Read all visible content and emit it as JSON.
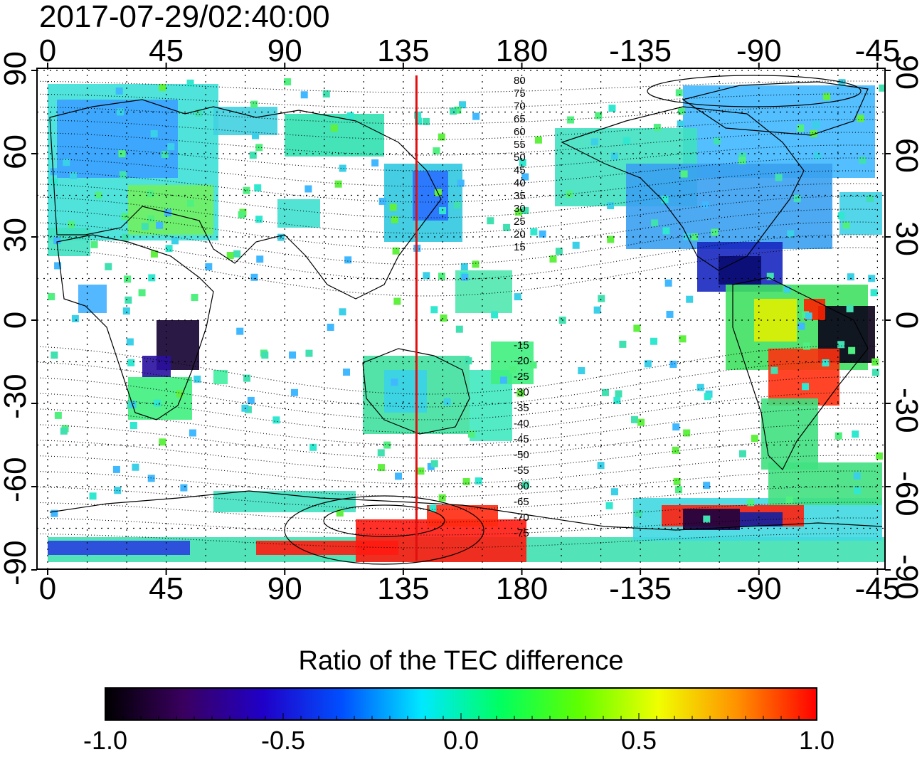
{
  "title": "2017-07-29/02:40:00",
  "axes": {
    "x_top_ticks": [
      "0",
      "45",
      "90",
      "135",
      "180",
      "-135",
      "-90",
      "-45"
    ],
    "x_bottom_ticks": [
      "0",
      "45",
      "90",
      "135",
      "180",
      "-135",
      "-90",
      "-45"
    ],
    "y_left_ticks": [
      "90",
      "60",
      "30",
      "0",
      "-30",
      "-60",
      "-90"
    ],
    "y_right_ticks": [
      "90",
      "60",
      "30",
      "0",
      "-30",
      "-60",
      "-90"
    ]
  },
  "magnetic_latitude_labels": [
    "80",
    "75",
    "70",
    "65",
    "60",
    "55",
    "50",
    "45",
    "40",
    "35",
    "30",
    "25",
    "20",
    "15",
    "-15",
    "-20",
    "-25",
    "-30",
    "-35",
    "-40",
    "-45",
    "-50",
    "-55",
    "-60",
    "-65",
    "-70",
    "-75"
  ],
  "marker_longitude": 140,
  "colorbar": {
    "title": "Ratio of the TEC difference",
    "tick_labels": [
      "-1.0",
      "-0.5",
      "0.0",
      "0.5",
      "1.0"
    ],
    "colors": [
      "#000000",
      "#3a0060",
      "#2000c8",
      "#0050ff",
      "#00e8ff",
      "#00ff60",
      "#60ff00",
      "#f0ff00",
      "#ff9000",
      "#ff0000"
    ]
  }
}
